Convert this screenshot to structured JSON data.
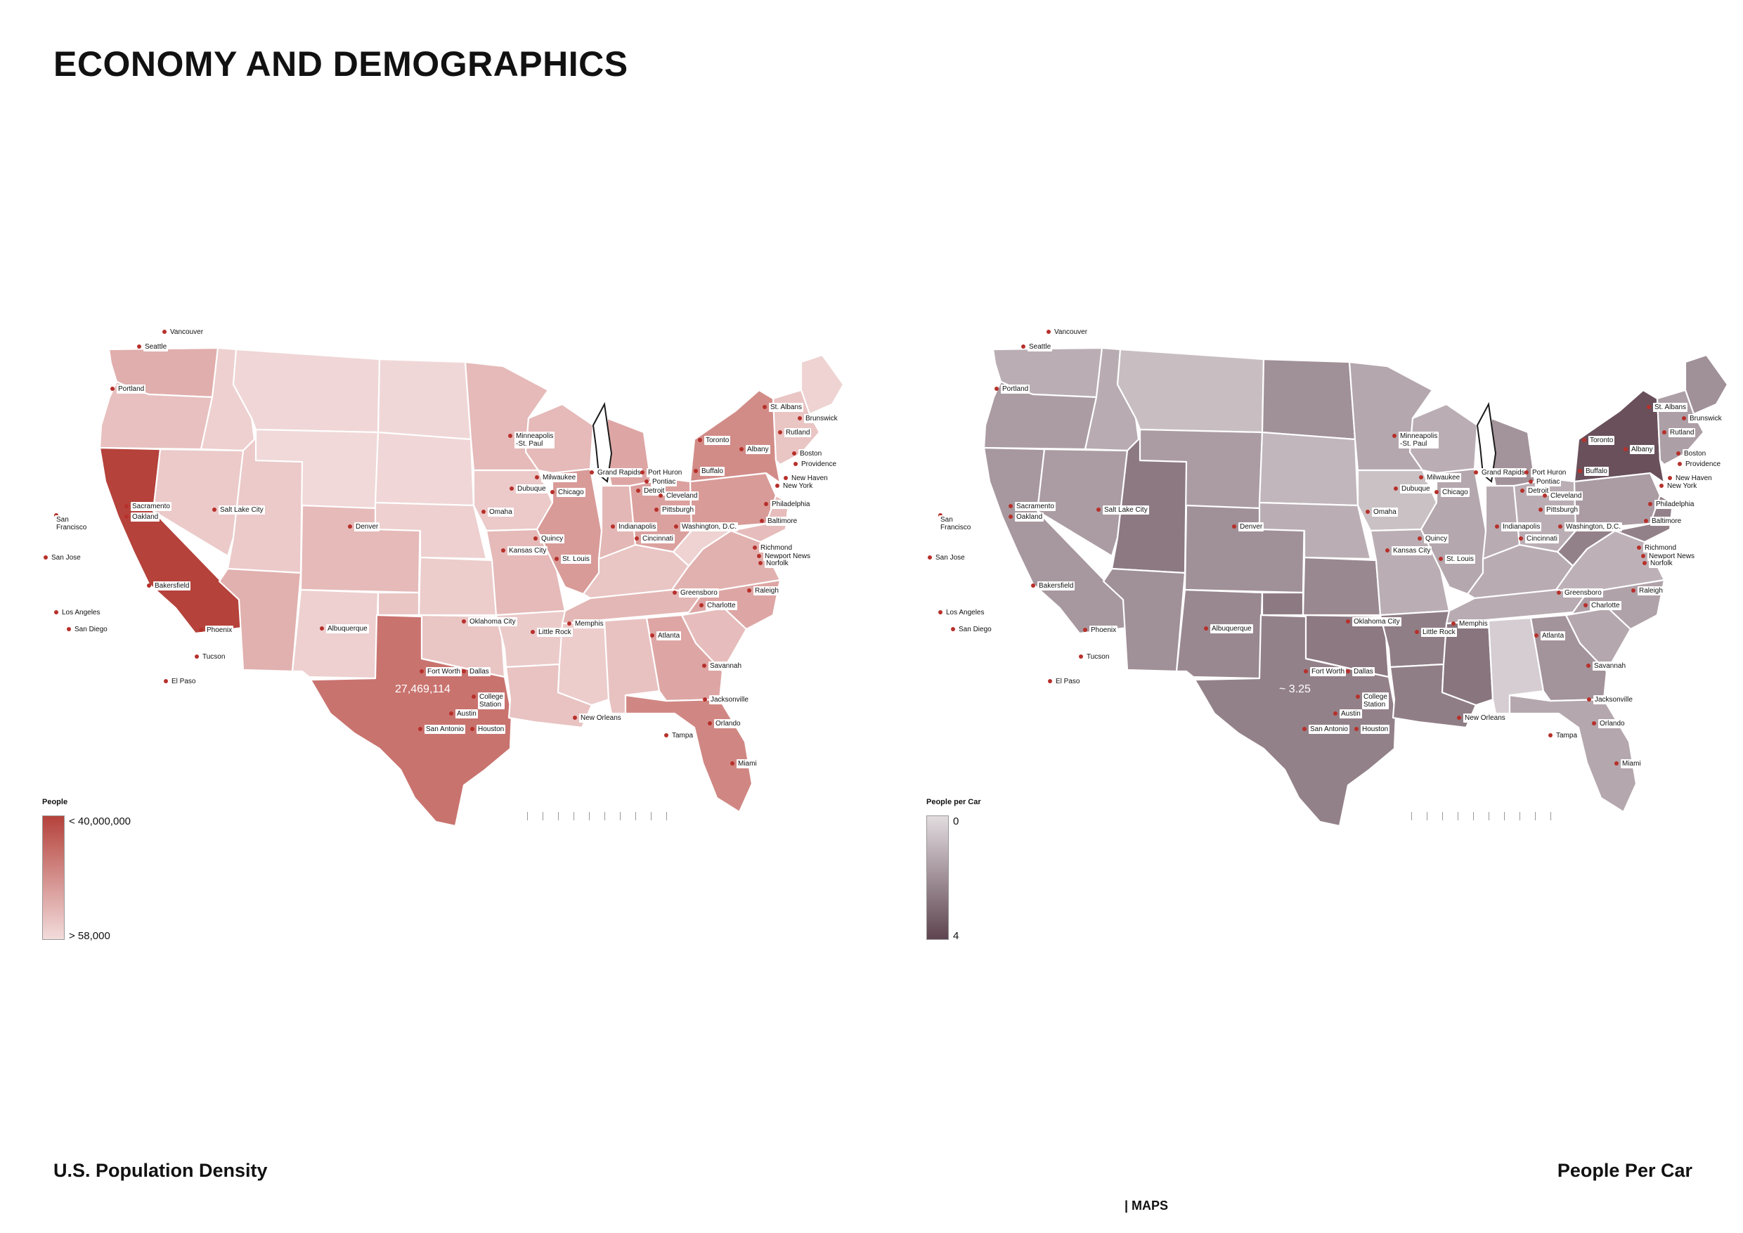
{
  "title": "ECONOMY AND DEMOGRAPHICS",
  "footer": "| MAPS",
  "maps": [
    {
      "caption": "U.S. Population Density",
      "legend": {
        "title": "People",
        "top": "< 40,000,000",
        "bottom": "> 58,000"
      },
      "annotation": "27,469,114",
      "colors": {
        "low": "#f2dcdc",
        "high": "#b5423b"
      }
    },
    {
      "caption": "People Per Car",
      "legend": {
        "title": "People per Car",
        "top": "0",
        "bottom": "4"
      },
      "annotation": "~ 3.25",
      "colors": {
        "low": "#e2dcdf",
        "high": "#5e4450"
      }
    }
  ],
  "cities": [
    {
      "name": "Vancouver"
    },
    {
      "name": "Seattle"
    },
    {
      "name": "Portland"
    },
    {
      "name": "Sacramento"
    },
    {
      "name": "San\nFrancisco"
    },
    {
      "name": "Oakland"
    },
    {
      "name": "San Jose"
    },
    {
      "name": "Bakersfield"
    },
    {
      "name": "Los Angeles"
    },
    {
      "name": "San Diego"
    },
    {
      "name": "Salt Lake City"
    },
    {
      "name": "Phoenix"
    },
    {
      "name": "Tucson"
    },
    {
      "name": "Albuquerque"
    },
    {
      "name": "El Paso"
    },
    {
      "name": "Denver"
    },
    {
      "name": "Oklahoma City"
    },
    {
      "name": "Fort Worth"
    },
    {
      "name": "Dallas"
    },
    {
      "name": "College\nStation"
    },
    {
      "name": "Austin"
    },
    {
      "name": "San Antonio"
    },
    {
      "name": "Houston"
    },
    {
      "name": "Minneapolis\n-St. Paul"
    },
    {
      "name": "Omaha"
    },
    {
      "name": "Kansas City"
    },
    {
      "name": "Milwaukee"
    },
    {
      "name": "Dubuque"
    },
    {
      "name": "Chicago"
    },
    {
      "name": "Quincy"
    },
    {
      "name": "St. Louis"
    },
    {
      "name": "Memphis"
    },
    {
      "name": "Little Rock"
    },
    {
      "name": "New Orleans"
    },
    {
      "name": "Grand Rapids"
    },
    {
      "name": "Port Huron"
    },
    {
      "name": "Pontiac"
    },
    {
      "name": "Detroit"
    },
    {
      "name": "Toronto"
    },
    {
      "name": "Cleveland"
    },
    {
      "name": "Indianapolis"
    },
    {
      "name": "Cincinnati"
    },
    {
      "name": "Pittsburgh"
    },
    {
      "name": "Washington, D.C."
    },
    {
      "name": "Buffalo"
    },
    {
      "name": "Albany"
    },
    {
      "name": "St. Albans"
    },
    {
      "name": "Rutland"
    },
    {
      "name": "Brunswick"
    },
    {
      "name": "Boston"
    },
    {
      "name": "Providence"
    },
    {
      "name": "New Haven"
    },
    {
      "name": "New York"
    },
    {
      "name": "Philadelphia"
    },
    {
      "name": "Baltimore"
    },
    {
      "name": "Richmond"
    },
    {
      "name": "Newport News"
    },
    {
      "name": "Norfolk"
    },
    {
      "name": "Greensboro"
    },
    {
      "name": "Raleigh"
    },
    {
      "name": "Charlotte"
    },
    {
      "name": "Atlanta"
    },
    {
      "name": "Savannah"
    },
    {
      "name": "Jacksonville"
    },
    {
      "name": "Orlando"
    },
    {
      "name": "Tampa"
    },
    {
      "name": "Miami"
    }
  ],
  "state_values": {
    "population": {
      "wa": 0.3,
      "or": 0.18,
      "ca": 1.0,
      "id": 0.08,
      "nv": 0.12,
      "mt": 0.04,
      "wy": 0.02,
      "ut": 0.12,
      "az": 0.28,
      "co": 0.22,
      "nm": 0.08,
      "nd": 0.03,
      "sd": 0.04,
      "ne": 0.08,
      "ks": 0.1,
      "ok": 0.15,
      "tx": 0.68,
      "mn": 0.22,
      "ia": 0.12,
      "mo": 0.22,
      "ar": 0.11,
      "la": 0.16,
      "wi": 0.22,
      "il": 0.42,
      "mi": 0.35,
      "in": 0.24,
      "oh": 0.38,
      "ky": 0.15,
      "tn": 0.24,
      "ms": 0.1,
      "al": 0.17,
      "ga": 0.35,
      "fl": 0.55,
      "sc": 0.2,
      "nc": 0.35,
      "va": 0.28,
      "wv": 0.06,
      "pa": 0.42,
      "ny": 0.52,
      "me": 0.06,
      "ne_states": 0.15,
      "mdde": 0.2
    },
    "cars": {
      "wa": 0.3,
      "or": 0.42,
      "ca": 0.45,
      "id": 0.32,
      "nv": 0.42,
      "mt": 0.2,
      "wy": 0.42,
      "ut": 0.65,
      "az": 0.5,
      "co": 0.5,
      "nm": 0.55,
      "nd": 0.5,
      "sd": 0.25,
      "ne": 0.3,
      "ks": 0.55,
      "ok": 0.65,
      "tx": 0.6,
      "mn": 0.35,
      "ia": 0.18,
      "mo": 0.3,
      "ar": 0.62,
      "la": 0.62,
      "wi": 0.3,
      "il": 0.35,
      "mi": 0.48,
      "in": 0.32,
      "oh": 0.3,
      "ky": 0.32,
      "tn": 0.32,
      "ms": 0.68,
      "al": 0.1,
      "ga": 0.48,
      "fl": 0.35,
      "sc": 0.35,
      "nc": 0.38,
      "va": 0.28,
      "wv": 0.6,
      "pa": 0.42,
      "ny": 0.92,
      "me": 0.5,
      "ne_states": 0.4,
      "mdde": 0.6
    }
  }
}
